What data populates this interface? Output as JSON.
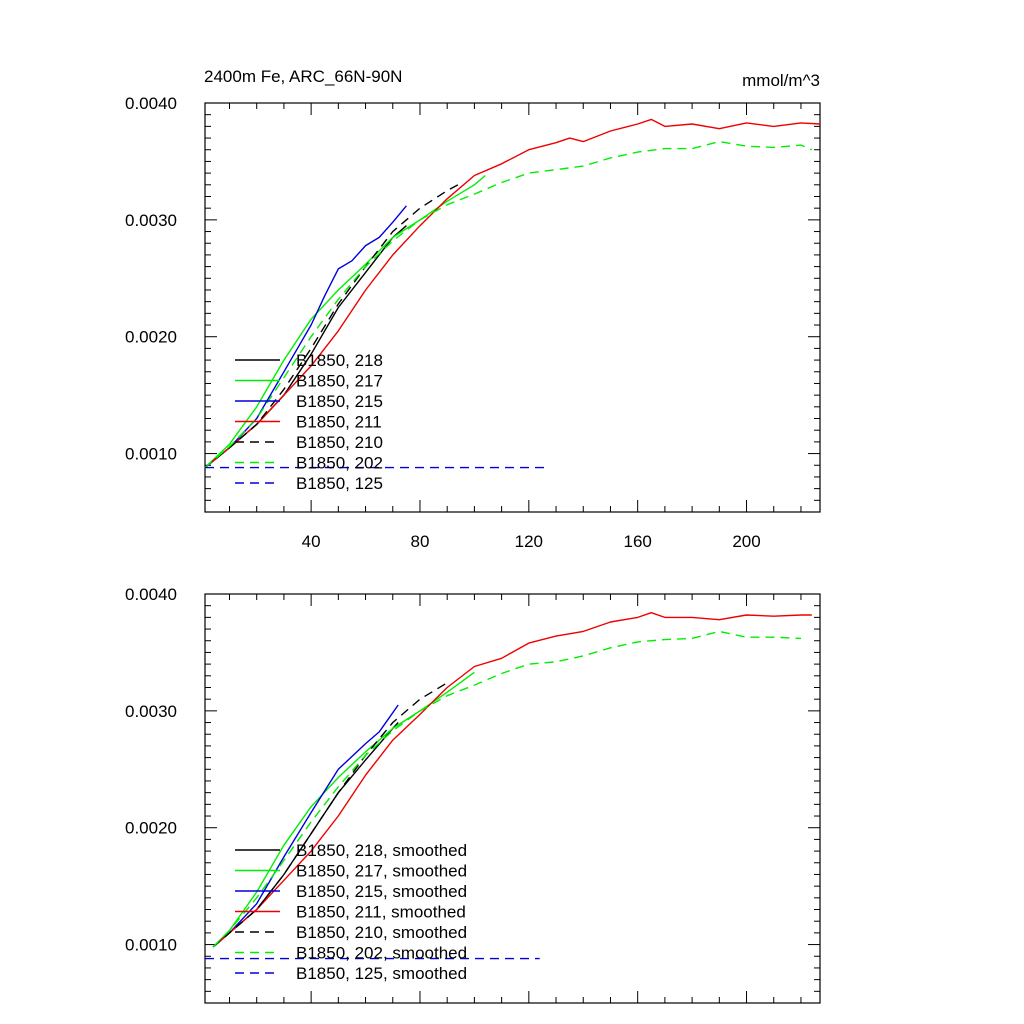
{
  "figure": {
    "title_left": "2400m Fe, ARC_66N-90N",
    "title_right": "mmol/m^3"
  },
  "chart_data": [
    {
      "type": "line",
      "title": "2400m Fe, ARC_66N-90N",
      "units_label": "mmol/m^3",
      "xlim": [
        1,
        227
      ],
      "ylim": [
        0.0005,
        0.004
      ],
      "x_ticks": [
        40,
        80,
        120,
        160,
        200
      ],
      "x_tick_labels": [
        "40",
        "80",
        "120",
        "160",
        "200"
      ],
      "y_ticks": [
        0.001,
        0.002,
        0.003,
        0.004
      ],
      "y_tick_labels": [
        "0.0010",
        "0.0020",
        "0.0030",
        "0.0040"
      ],
      "legend_position": "bottom-left",
      "series": [
        {
          "name": "B1850, 218",
          "color": "#000000",
          "dash": "solid",
          "x": [
            1,
            10,
            20,
            30,
            40,
            50,
            60,
            70,
            75
          ],
          "y": [
            0.00088,
            0.00105,
            0.00125,
            0.0015,
            0.00185,
            0.00225,
            0.00255,
            0.00285,
            0.00295
          ]
        },
        {
          "name": "B1850, 217",
          "color": "#00ee00",
          "dash": "solid",
          "x": [
            1,
            10,
            20,
            30,
            40,
            50,
            60,
            70,
            80,
            90,
            100,
            104
          ],
          "y": [
            0.00088,
            0.00108,
            0.0014,
            0.0018,
            0.00215,
            0.0024,
            0.00262,
            0.00285,
            0.003,
            0.00316,
            0.0033,
            0.00338
          ]
        },
        {
          "name": "B1850, 215",
          "color": "#0000dd",
          "dash": "solid",
          "x": [
            1,
            10,
            20,
            30,
            40,
            45,
            50,
            55,
            60,
            65,
            70,
            75
          ],
          "y": [
            0.00088,
            0.00105,
            0.0013,
            0.0017,
            0.0021,
            0.00235,
            0.00258,
            0.00265,
            0.00278,
            0.00285,
            0.00298,
            0.00312
          ]
        },
        {
          "name": "B1850, 211",
          "color": "#ee0000",
          "dash": "solid",
          "x": [
            1,
            10,
            20,
            30,
            40,
            50,
            60,
            70,
            80,
            90,
            100,
            110,
            120,
            130,
            135,
            140,
            150,
            160,
            165,
            170,
            180,
            190,
            200,
            210,
            220,
            227
          ],
          "y": [
            0.00088,
            0.00105,
            0.00125,
            0.0015,
            0.00175,
            0.00205,
            0.0024,
            0.0027,
            0.00295,
            0.00318,
            0.00338,
            0.00348,
            0.0036,
            0.00366,
            0.0037,
            0.00367,
            0.00376,
            0.00382,
            0.00386,
            0.0038,
            0.00382,
            0.00378,
            0.00383,
            0.0038,
            0.00383,
            0.00382
          ]
        },
        {
          "name": "B1850, 210",
          "color": "#000000",
          "dash": "dashed",
          "x": [
            1,
            10,
            20,
            30,
            40,
            50,
            60,
            70,
            80,
            90,
            94
          ],
          "y": [
            0.00088,
            0.00105,
            0.00125,
            0.00155,
            0.0019,
            0.00228,
            0.0026,
            0.0029,
            0.0031,
            0.00325,
            0.0033
          ]
        },
        {
          "name": "B1850, 202",
          "color": "#00ee00",
          "dash": "dashed",
          "x": [
            1,
            10,
            20,
            30,
            40,
            50,
            60,
            70,
            80,
            90,
            100,
            110,
            120,
            130,
            140,
            150,
            160,
            170,
            180,
            190,
            200,
            210,
            220,
            224
          ],
          "y": [
            0.00088,
            0.00106,
            0.0013,
            0.00165,
            0.002,
            0.00232,
            0.0026,
            0.00282,
            0.003,
            0.00313,
            0.00322,
            0.00332,
            0.0034,
            0.00343,
            0.00346,
            0.00353,
            0.00358,
            0.00361,
            0.00361,
            0.00367,
            0.00363,
            0.00362,
            0.00364,
            0.0036
          ]
        },
        {
          "name": "B1850, 125",
          "color": "#0000dd",
          "dash": "dashed",
          "x": [
            1,
            127
          ],
          "y": [
            0.00088,
            0.00088
          ]
        }
      ]
    },
    {
      "type": "line",
      "title": "",
      "xlim": [
        1,
        227
      ],
      "ylim": [
        0.0005,
        0.004
      ],
      "x_ticks": [
        40,
        80,
        120,
        160,
        200
      ],
      "x_tick_labels": [],
      "y_ticks": [
        0.001,
        0.002,
        0.003,
        0.004
      ],
      "y_tick_labels": [
        "0.0010",
        "0.0020",
        "0.0030",
        "0.0040"
      ],
      "legend_position": "bottom-left",
      "series": [
        {
          "name": "B1850, 218, smoothed",
          "color": "#000000",
          "dash": "solid",
          "x": [
            4,
            10,
            20,
            30,
            40,
            50,
            60,
            70,
            72
          ],
          "y": [
            0.00098,
            0.0011,
            0.0013,
            0.0016,
            0.00195,
            0.0023,
            0.00258,
            0.00285,
            0.0029
          ]
        },
        {
          "name": "B1850, 217, smoothed",
          "color": "#00ee00",
          "dash": "solid",
          "x": [
            4,
            10,
            20,
            30,
            40,
            50,
            60,
            70,
            80,
            90,
            100
          ],
          "y": [
            0.00098,
            0.00112,
            0.00145,
            0.00185,
            0.00218,
            0.00243,
            0.00265,
            0.00285,
            0.003,
            0.00316,
            0.00333
          ]
        },
        {
          "name": "B1850, 215, smoothed",
          "color": "#0000dd",
          "dash": "solid",
          "x": [
            4,
            10,
            20,
            30,
            40,
            50,
            60,
            65,
            72
          ],
          "y": [
            0.00098,
            0.0011,
            0.00135,
            0.00175,
            0.00213,
            0.0025,
            0.00272,
            0.00282,
            0.00305
          ]
        },
        {
          "name": "B1850, 211, smoothed",
          "color": "#ee0000",
          "dash": "solid",
          "x": [
            4,
            10,
            20,
            30,
            40,
            50,
            60,
            70,
            80,
            90,
            100,
            110,
            120,
            130,
            140,
            150,
            160,
            165,
            170,
            180,
            190,
            200,
            210,
            220,
            224
          ],
          "y": [
            0.00098,
            0.0011,
            0.0013,
            0.00155,
            0.0018,
            0.0021,
            0.00245,
            0.00275,
            0.00297,
            0.0032,
            0.00338,
            0.00345,
            0.00358,
            0.00364,
            0.00368,
            0.00376,
            0.0038,
            0.00384,
            0.0038,
            0.0038,
            0.00378,
            0.00382,
            0.00381,
            0.00382,
            0.00382
          ]
        },
        {
          "name": "B1850, 210, smoothed",
          "color": "#000000",
          "dash": "dashed",
          "x": [
            4,
            10,
            20,
            30,
            40,
            50,
            60,
            70,
            80,
            90,
            91
          ],
          "y": [
            0.00098,
            0.0011,
            0.0013,
            0.0016,
            0.00195,
            0.0023,
            0.00262,
            0.0029,
            0.0031,
            0.00324,
            0.00325
          ]
        },
        {
          "name": "B1850, 202, smoothed",
          "color": "#00ee00",
          "dash": "dashed",
          "x": [
            4,
            10,
            20,
            30,
            40,
            50,
            60,
            70,
            80,
            90,
            100,
            110,
            120,
            130,
            140,
            150,
            160,
            170,
            180,
            190,
            200,
            210,
            220
          ],
          "y": [
            0.00098,
            0.00112,
            0.0014,
            0.00172,
            0.00205,
            0.00235,
            0.00262,
            0.00283,
            0.003,
            0.00313,
            0.00322,
            0.00332,
            0.0034,
            0.00342,
            0.00347,
            0.00354,
            0.00359,
            0.00361,
            0.00362,
            0.00368,
            0.00363,
            0.00363,
            0.00362
          ]
        },
        {
          "name": "B1850, 125, smoothed",
          "color": "#0000dd",
          "dash": "dashed",
          "x": [
            1,
            124
          ],
          "y": [
            0.00088,
            0.00088
          ]
        }
      ]
    }
  ]
}
